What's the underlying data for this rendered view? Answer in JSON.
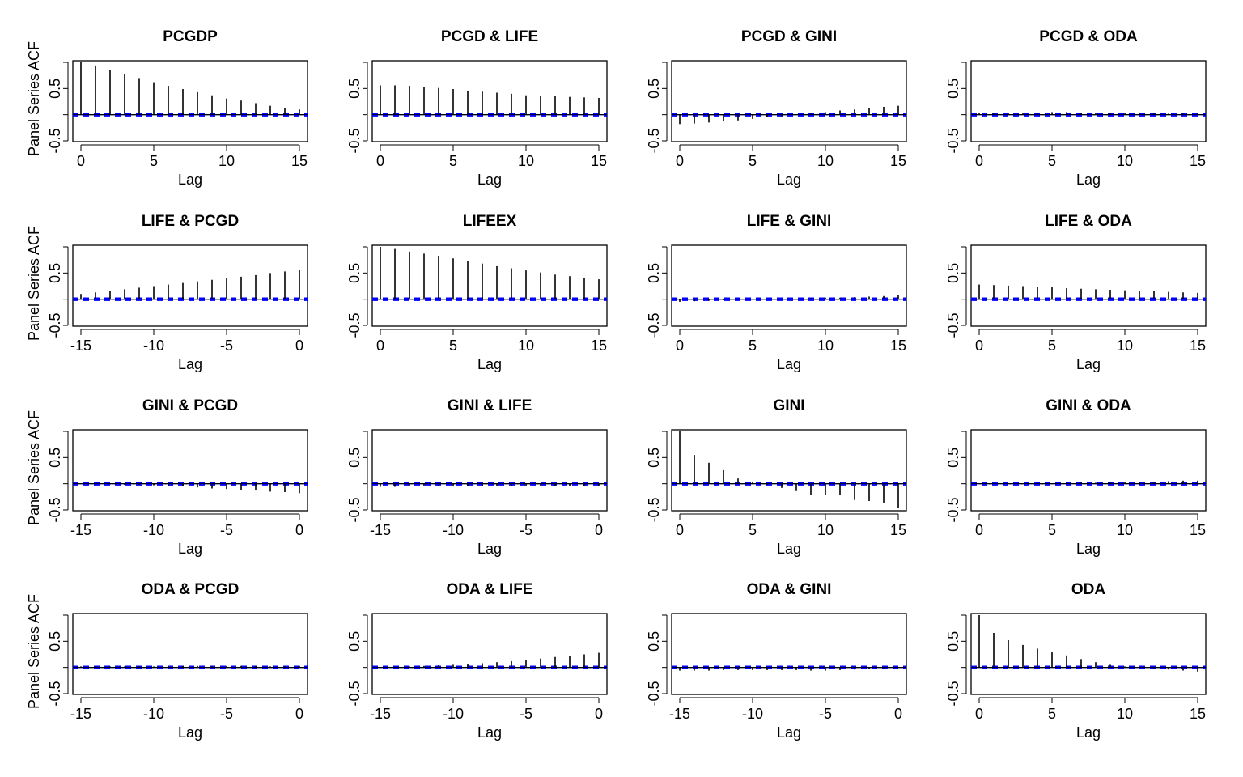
{
  "figure": {
    "ylabel": "Panel Series ACF",
    "xlabel": "Lag",
    "ci_color": "#0000ff",
    "line_color": "#000000"
  },
  "chart_data": [
    {
      "type": "bar",
      "title": "PCGDP",
      "xlabel": "Lag",
      "ylabel": "Panel Series ACF",
      "ylim": [
        -0.5,
        1.0
      ],
      "xlim": [
        0,
        15
      ],
      "xticks": [
        0,
        5,
        10,
        15
      ],
      "yticks": [
        -0.5,
        0,
        0.5
      ],
      "ytick_labels": [
        "-0.5",
        "",
        "0.5"
      ],
      "x": [
        0,
        1,
        2,
        3,
        4,
        5,
        6,
        7,
        8,
        9,
        10,
        11,
        12,
        13,
        14,
        15
      ],
      "values": [
        1.0,
        0.94,
        0.86,
        0.78,
        0.7,
        0.62,
        0.55,
        0.49,
        0.43,
        0.37,
        0.31,
        0.27,
        0.22,
        0.17,
        0.13,
        0.1
      ],
      "ci": 0.02
    },
    {
      "type": "bar",
      "title": "PCGD & LIFE",
      "xlabel": "Lag",
      "ylabel": "",
      "ylim": [
        -0.5,
        1.0
      ],
      "xlim": [
        0,
        15
      ],
      "xticks": [
        0,
        5,
        10,
        15
      ],
      "yticks": [
        -0.5,
        0,
        0.5
      ],
      "ytick_labels": [
        "-0.5",
        "",
        "0.5"
      ],
      "x": [
        0,
        1,
        2,
        3,
        4,
        5,
        6,
        7,
        8,
        9,
        10,
        11,
        12,
        13,
        14,
        15
      ],
      "values": [
        0.56,
        0.56,
        0.55,
        0.53,
        0.51,
        0.49,
        0.46,
        0.44,
        0.42,
        0.4,
        0.37,
        0.36,
        0.35,
        0.34,
        0.33,
        0.32
      ],
      "ci": 0.02
    },
    {
      "type": "bar",
      "title": "PCGD & GINI",
      "xlabel": "Lag",
      "ylabel": "",
      "ylim": [
        -0.5,
        1.0
      ],
      "xlim": [
        0,
        15
      ],
      "xticks": [
        0,
        5,
        10,
        15
      ],
      "yticks": [
        -0.5,
        0,
        0.5
      ],
      "ytick_labels": [
        "-0.5",
        "",
        "0.5"
      ],
      "x": [
        0,
        1,
        2,
        3,
        4,
        5,
        6,
        7,
        8,
        9,
        10,
        11,
        12,
        13,
        14,
        15
      ],
      "values": [
        -0.18,
        -0.17,
        -0.15,
        -0.13,
        -0.11,
        -0.08,
        -0.05,
        -0.03,
        0.0,
        0.02,
        0.05,
        0.08,
        0.1,
        0.13,
        0.15,
        0.17
      ],
      "ci": 0.02
    },
    {
      "type": "bar",
      "title": "PCGD & ODA",
      "xlabel": "Lag",
      "ylabel": "",
      "ylim": [
        -0.5,
        1.0
      ],
      "xlim": [
        0,
        15
      ],
      "xticks": [
        0,
        5,
        10,
        15
      ],
      "yticks": [
        -0.5,
        0,
        0.5
      ],
      "ytick_labels": [
        "-0.5",
        "",
        "0.5"
      ],
      "x": [
        0,
        1,
        2,
        3,
        4,
        5,
        6,
        7,
        8,
        9,
        10,
        11,
        12,
        13,
        14,
        15
      ],
      "values": [
        0.03,
        0.03,
        0.04,
        0.04,
        0.04,
        0.05,
        0.05,
        0.04,
        0.04,
        0.04,
        0.03,
        0.03,
        0.03,
        0.02,
        0.02,
        0.02
      ],
      "ci": 0.02
    },
    {
      "type": "bar",
      "title": "LIFE & PCGD",
      "xlabel": "Lag",
      "ylabel": "Panel Series ACF",
      "ylim": [
        -0.5,
        1.0
      ],
      "xlim": [
        -15,
        0
      ],
      "xticks": [
        -15,
        -10,
        -5,
        0
      ],
      "yticks": [
        -0.5,
        0,
        0.5
      ],
      "ytick_labels": [
        "-0.5",
        "",
        "0.5"
      ],
      "x": [
        -15,
        -14,
        -13,
        -12,
        -11,
        -10,
        -9,
        -8,
        -7,
        -6,
        -5,
        -4,
        -3,
        -2,
        -1,
        0
      ],
      "values": [
        0.1,
        0.13,
        0.16,
        0.19,
        0.22,
        0.25,
        0.28,
        0.31,
        0.34,
        0.37,
        0.4,
        0.43,
        0.46,
        0.5,
        0.53,
        0.56
      ],
      "ci": 0.02
    },
    {
      "type": "bar",
      "title": "LIFEEX",
      "xlabel": "Lag",
      "ylabel": "",
      "ylim": [
        -0.5,
        1.0
      ],
      "xlim": [
        0,
        15
      ],
      "xticks": [
        0,
        5,
        10,
        15
      ],
      "yticks": [
        -0.5,
        0,
        0.5
      ],
      "ytick_labels": [
        "-0.5",
        "",
        "0.5"
      ],
      "x": [
        0,
        1,
        2,
        3,
        4,
        5,
        6,
        7,
        8,
        9,
        10,
        11,
        12,
        13,
        14,
        15
      ],
      "values": [
        1.0,
        0.96,
        0.91,
        0.87,
        0.83,
        0.78,
        0.73,
        0.68,
        0.63,
        0.59,
        0.55,
        0.51,
        0.47,
        0.44,
        0.41,
        0.38
      ],
      "ci": 0.02
    },
    {
      "type": "bar",
      "title": "LIFE & GINI",
      "xlabel": "Lag",
      "ylabel": "",
      "ylim": [
        -0.5,
        1.0
      ],
      "xlim": [
        0,
        15
      ],
      "xticks": [
        0,
        5,
        10,
        15
      ],
      "yticks": [
        -0.5,
        0,
        0.5
      ],
      "ytick_labels": [
        "-0.5",
        "",
        "0.5"
      ],
      "x": [
        0,
        1,
        2,
        3,
        4,
        5,
        6,
        7,
        8,
        9,
        10,
        11,
        12,
        13,
        14,
        15
      ],
      "values": [
        -0.05,
        -0.04,
        -0.03,
        -0.02,
        -0.01,
        0.0,
        0.0,
        0.01,
        0.01,
        0.02,
        0.03,
        0.03,
        0.04,
        0.05,
        0.06,
        0.08
      ],
      "ci": 0.02
    },
    {
      "type": "bar",
      "title": "LIFE & ODA",
      "xlabel": "Lag",
      "ylabel": "",
      "ylim": [
        -0.5,
        1.0
      ],
      "xlim": [
        0,
        15
      ],
      "xticks": [
        0,
        5,
        10,
        15
      ],
      "yticks": [
        -0.5,
        0,
        0.5
      ],
      "ytick_labels": [
        "-0.5",
        "",
        "0.5"
      ],
      "x": [
        0,
        1,
        2,
        3,
        4,
        5,
        6,
        7,
        8,
        9,
        10,
        11,
        12,
        13,
        14,
        15
      ],
      "values": [
        0.28,
        0.27,
        0.26,
        0.25,
        0.24,
        0.23,
        0.21,
        0.2,
        0.19,
        0.18,
        0.17,
        0.16,
        0.15,
        0.14,
        0.13,
        0.12
      ],
      "ci": 0.02
    },
    {
      "type": "bar",
      "title": "GINI & PCGD",
      "xlabel": "Lag",
      "ylabel": "Panel Series ACF",
      "ylim": [
        -0.5,
        1.0
      ],
      "xlim": [
        -15,
        0
      ],
      "xticks": [
        -15,
        -10,
        -5,
        0
      ],
      "yticks": [
        -0.5,
        0,
        0.5
      ],
      "ytick_labels": [
        "-0.5",
        "",
        "0.5"
      ],
      "x": [
        -15,
        -14,
        -13,
        -12,
        -11,
        -10,
        -9,
        -8,
        -7,
        -6,
        -5,
        -4,
        -3,
        -2,
        -1,
        0
      ],
      "values": [
        0.0,
        -0.01,
        -0.01,
        -0.02,
        -0.02,
        -0.03,
        -0.04,
        -0.05,
        -0.07,
        -0.09,
        -0.1,
        -0.12,
        -0.13,
        -0.15,
        -0.16,
        -0.18
      ],
      "ci": 0.02
    },
    {
      "type": "bar",
      "title": "GINI & LIFE",
      "xlabel": "Lag",
      "ylabel": "",
      "ylim": [
        -0.5,
        1.0
      ],
      "xlim": [
        -15,
        0
      ],
      "xticks": [
        -15,
        -10,
        -5,
        0
      ],
      "yticks": [
        -0.5,
        0,
        0.5
      ],
      "ytick_labels": [
        "-0.5",
        "",
        "0.5"
      ],
      "x": [
        -15,
        -14,
        -13,
        -12,
        -11,
        -10,
        -9,
        -8,
        -7,
        -6,
        -5,
        -4,
        -3,
        -2,
        -1,
        0
      ],
      "values": [
        -0.06,
        -0.06,
        -0.05,
        -0.05,
        -0.05,
        -0.04,
        -0.04,
        -0.04,
        -0.04,
        -0.04,
        -0.04,
        -0.04,
        -0.04,
        -0.05,
        -0.05,
        -0.05
      ],
      "ci": 0.02
    },
    {
      "type": "bar",
      "title": "GINI",
      "xlabel": "Lag",
      "ylabel": "",
      "ylim": [
        -0.5,
        1.0
      ],
      "xlim": [
        0,
        15
      ],
      "xticks": [
        0,
        5,
        10,
        15
      ],
      "yticks": [
        -0.5,
        0,
        0.5
      ],
      "ytick_labels": [
        "-0.5",
        "",
        "0.5"
      ],
      "x": [
        0,
        1,
        2,
        3,
        4,
        5,
        6,
        7,
        8,
        9,
        10,
        11,
        12,
        13,
        14,
        15
      ],
      "values": [
        1.0,
        0.55,
        0.4,
        0.26,
        0.1,
        0.03,
        -0.02,
        -0.08,
        -0.14,
        -0.21,
        -0.22,
        -0.22,
        -0.31,
        -0.33,
        -0.36,
        -0.47
      ],
      "ci": 0.02
    },
    {
      "type": "bar",
      "title": "GINI & ODA",
      "xlabel": "Lag",
      "ylabel": "",
      "ylim": [
        -0.5,
        1.0
      ],
      "xlim": [
        0,
        15
      ],
      "xticks": [
        0,
        5,
        10,
        15
      ],
      "yticks": [
        -0.5,
        0,
        0.5
      ],
      "ytick_labels": [
        "-0.5",
        "",
        "0.5"
      ],
      "x": [
        0,
        1,
        2,
        3,
        4,
        5,
        6,
        7,
        8,
        9,
        10,
        11,
        12,
        13,
        14,
        15
      ],
      "values": [
        0.0,
        0.0,
        0.01,
        0.01,
        0.01,
        0.01,
        0.02,
        0.02,
        0.02,
        0.03,
        0.03,
        0.04,
        0.04,
        0.05,
        0.06,
        0.06
      ],
      "ci": 0.02
    },
    {
      "type": "bar",
      "title": "ODA & PCGD",
      "xlabel": "Lag",
      "ylabel": "Panel Series ACF",
      "ylim": [
        -0.5,
        1.0
      ],
      "xlim": [
        -15,
        0
      ],
      "xticks": [
        -15,
        -10,
        -5,
        0
      ],
      "yticks": [
        -0.5,
        0,
        0.5
      ],
      "ytick_labels": [
        "-0.5",
        "",
        "0.5"
      ],
      "x": [
        -15,
        -14,
        -13,
        -12,
        -11,
        -10,
        -9,
        -8,
        -7,
        -6,
        -5,
        -4,
        -3,
        -2,
        -1,
        0
      ],
      "values": [
        0.02,
        0.02,
        0.02,
        0.02,
        0.02,
        0.02,
        0.03,
        0.03,
        0.03,
        0.03,
        0.03,
        0.03,
        0.03,
        0.02,
        0.02,
        0.03
      ],
      "ci": 0.02
    },
    {
      "type": "bar",
      "title": "ODA & LIFE",
      "xlabel": "Lag",
      "ylabel": "",
      "ylim": [
        -0.5,
        1.0
      ],
      "xlim": [
        -15,
        0
      ],
      "xticks": [
        -15,
        -10,
        -5,
        0
      ],
      "yticks": [
        -0.5,
        0,
        0.5
      ],
      "ytick_labels": [
        "-0.5",
        "",
        "0.5"
      ],
      "x": [
        -15,
        -14,
        -13,
        -12,
        -11,
        -10,
        -9,
        -8,
        -7,
        -6,
        -5,
        -4,
        -3,
        -2,
        -1,
        0
      ],
      "values": [
        0.0,
        0.01,
        0.02,
        0.03,
        0.04,
        0.05,
        0.06,
        0.08,
        0.1,
        0.12,
        0.14,
        0.17,
        0.2,
        0.22,
        0.25,
        0.28
      ],
      "ci": 0.02
    },
    {
      "type": "bar",
      "title": "ODA & GINI",
      "xlabel": "Lag",
      "ylabel": "",
      "ylim": [
        -0.5,
        1.0
      ],
      "xlim": [
        -15,
        0
      ],
      "xticks": [
        -15,
        -10,
        -5,
        0
      ],
      "yticks": [
        -0.5,
        0,
        0.5
      ],
      "ytick_labels": [
        "-0.5",
        "",
        "0.5"
      ],
      "x": [
        -15,
        -14,
        -13,
        -12,
        -11,
        -10,
        -9,
        -8,
        -7,
        -6,
        -5,
        -4,
        -3,
        -2,
        -1,
        0
      ],
      "values": [
        -0.06,
        -0.06,
        -0.06,
        -0.05,
        -0.05,
        -0.05,
        -0.05,
        -0.05,
        -0.05,
        -0.06,
        -0.06,
        -0.05,
        -0.04,
        -0.03,
        -0.02,
        -0.01
      ],
      "ci": 0.02
    },
    {
      "type": "bar",
      "title": "ODA",
      "xlabel": "Lag",
      "ylabel": "",
      "ylim": [
        -0.5,
        1.0
      ],
      "xlim": [
        0,
        15
      ],
      "xticks": [
        0,
        5,
        10,
        15
      ],
      "yticks": [
        -0.5,
        0,
        0.5
      ],
      "ytick_labels": [
        "-0.5",
        "",
        "0.5"
      ],
      "x": [
        0,
        1,
        2,
        3,
        4,
        5,
        6,
        7,
        8,
        9,
        10,
        11,
        12,
        13,
        14,
        15
      ],
      "values": [
        1.0,
        0.66,
        0.52,
        0.43,
        0.36,
        0.29,
        0.23,
        0.16,
        0.1,
        0.05,
        0.02,
        0.0,
        -0.02,
        -0.04,
        -0.06,
        -0.08
      ],
      "ci": 0.02
    }
  ]
}
